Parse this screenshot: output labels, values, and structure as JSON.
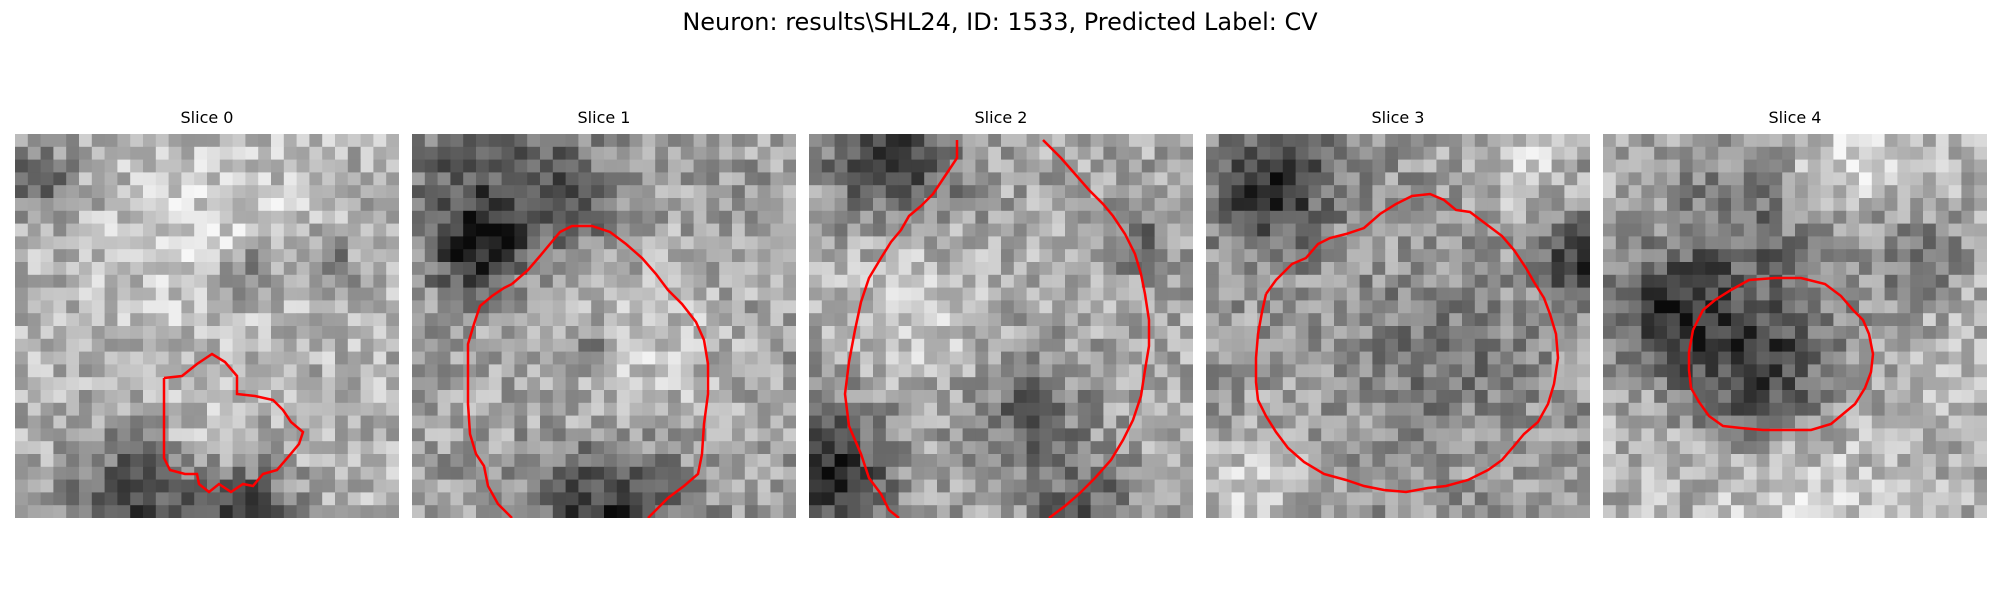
{
  "figure": {
    "title": "Neuron: results\\SHL24, ID: 1533, Predicted Label: CV"
  },
  "panels": [
    {
      "title": "Slice 0"
    },
    {
      "title": "Slice 1"
    },
    {
      "title": "Slice 2"
    },
    {
      "title": "Slice 3"
    },
    {
      "title": "Slice 4"
    }
  ],
  "colors": {
    "contour": "#ff0000",
    "background": "#ffffff"
  }
}
